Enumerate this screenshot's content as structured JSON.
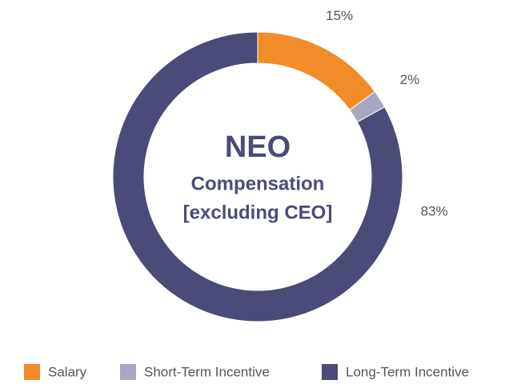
{
  "chart_data": {
    "type": "donut",
    "center_text": [
      "NEO",
      "Compensation",
      "[excluding CEO]"
    ],
    "categories": [
      "Salary",
      "Short-Term Incentive",
      "Long-Term Incentive"
    ],
    "values": [
      15,
      2,
      83
    ],
    "value_labels": [
      "15%",
      "2%",
      "83%"
    ],
    "colors": [
      "#f28c28",
      "#a8a7c0",
      "#4b4b7a"
    ],
    "legend": "bottom"
  }
}
